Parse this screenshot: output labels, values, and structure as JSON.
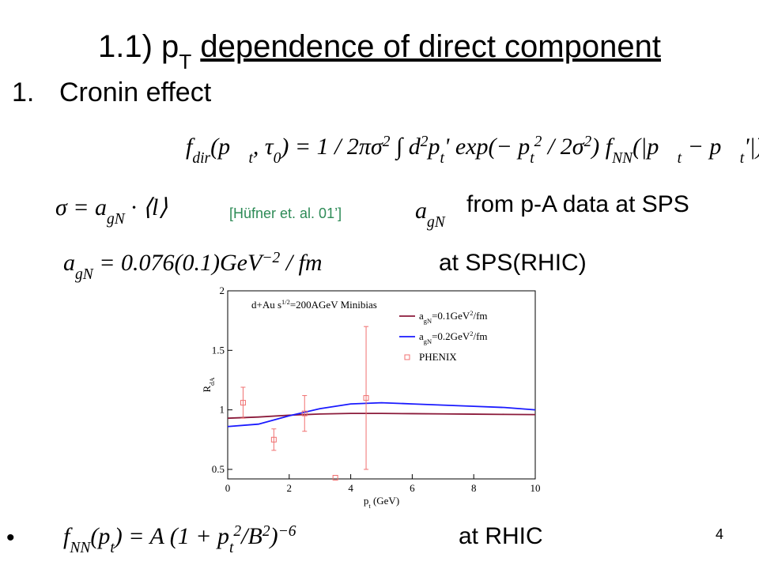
{
  "title": [
    {
      "t": "1.1) p"
    },
    {
      "t": "T",
      "p": "sub"
    },
    {
      "t": " "
    },
    {
      "t": "dependence of direct component",
      "u": true
    }
  ],
  "item": {
    "number": "1.",
    "text": "Cronin effect"
  },
  "eq1": [
    {
      "t": "f"
    },
    {
      "t": "dir",
      "p": "sub"
    },
    {
      "t": "(p⃗"
    },
    {
      "t": "t",
      "p": "sub"
    },
    {
      "t": ", τ"
    },
    {
      "t": "0",
      "p": "sub"
    },
    {
      "t": ") = 1 / 2πσ"
    },
    {
      "t": "2",
      "p": "sup"
    },
    {
      "t": " ∫ d"
    },
    {
      "t": "2",
      "p": "sup"
    },
    {
      "t": "p"
    },
    {
      "t": "t",
      "p": "sub"
    },
    {
      "t": "' exp(− p"
    },
    {
      "t": "t",
      "p": "sub"
    },
    {
      "t": "2",
      "p": "sup"
    },
    {
      "t": " / 2σ"
    },
    {
      "t": "2",
      "p": "sup"
    },
    {
      "t": ") f"
    },
    {
      "t": "NN",
      "p": "sub"
    },
    {
      "t": "(|p⃗"
    },
    {
      "t": "t",
      "p": "sub"
    },
    {
      "t": " − p⃗"
    },
    {
      "t": "t",
      "p": "sub"
    },
    {
      "t": "'|)"
    }
  ],
  "eq2": [
    {
      "t": "σ = a"
    },
    {
      "t": "gN",
      "p": "sub"
    },
    {
      "t": " · ⟨l⟩"
    }
  ],
  "reference": "[Hüfner et. al. 01’]",
  "eq2b": [
    {
      "t": "a"
    },
    {
      "t": "gN",
      "p": "sub"
    }
  ],
  "eq2_note": "from p-A data at SPS",
  "eq3": [
    {
      "t": "a"
    },
    {
      "t": "gN",
      "p": "sub"
    },
    {
      "t": " = 0.076(0.1)GeV"
    },
    {
      "t": "−2",
      "p": "sup"
    },
    {
      "t": " / fm"
    }
  ],
  "eq3_note": "at SPS(RHIC)",
  "bullet": "•",
  "eq4": [
    {
      "t": "f"
    },
    {
      "t": "NN",
      "p": "sub"
    },
    {
      "t": "(p"
    },
    {
      "t": "t",
      "p": "sub"
    },
    {
      "t": ") = A (1 + p"
    },
    {
      "t": "t",
      "p": "sub"
    },
    {
      "t": "2",
      "p": "sup"
    },
    {
      "t": "/B"
    },
    {
      "t": "2",
      "p": "sup"
    },
    {
      "t": ")"
    },
    {
      "t": "−6",
      "p": "sup"
    }
  ],
  "eq4_note": "at RHIC",
  "page_number": "4",
  "chart_data": {
    "type": "line",
    "annotation": [
      {
        "t": "d+Au s"
      },
      {
        "t": "1/2",
        "p": "sup"
      },
      {
        "t": "=200AGeV Minibias"
      }
    ],
    "x_label": [
      {
        "t": "p"
      },
      {
        "t": "t",
        "p": "sub"
      },
      {
        "t": " (GeV)"
      }
    ],
    "y_label": [
      {
        "t": "R"
      },
      {
        "t": "dA",
        "p": "sub"
      }
    ],
    "xlim": [
      0,
      10
    ],
    "ylim": [
      0.42,
      2
    ],
    "xticks": [
      0,
      2,
      4,
      6,
      8,
      10
    ],
    "yticks": [
      0.5,
      1,
      1.5,
      2
    ],
    "x": [
      0,
      1,
      2,
      3,
      4,
      5,
      6,
      7,
      8,
      9,
      10
    ],
    "series": [
      {
        "name": [
          {
            "t": "a"
          },
          {
            "t": "gN",
            "p": "sub"
          },
          {
            "t": "=0.1GeV"
          },
          {
            "t": "2",
            "p": "sup"
          },
          {
            "t": "/fm"
          }
        ],
        "color": "#8b1a3a",
        "values": [
          0.93,
          0.94,
          0.955,
          0.965,
          0.97,
          0.97,
          0.968,
          0.966,
          0.964,
          0.962,
          0.96
        ]
      },
      {
        "name": [
          {
            "t": "a"
          },
          {
            "t": "gN",
            "p": "sub"
          },
          {
            "t": "=0.2GeV"
          },
          {
            "t": "2",
            "p": "sup"
          },
          {
            "t": "/fm"
          }
        ],
        "color": "#1a1aff",
        "values": [
          0.86,
          0.88,
          0.95,
          1.01,
          1.05,
          1.06,
          1.05,
          1.04,
          1.03,
          1.02,
          1.0
        ]
      }
    ],
    "points": {
      "name": [
        {
          "t": "PHENIX"
        }
      ],
      "color": "#f07070",
      "x": [
        0.5,
        1.5,
        2.5,
        3.5,
        4.5
      ],
      "values": [
        1.06,
        0.75,
        0.97,
        0.43,
        1.1
      ],
      "errors": [
        0.13,
        0.09,
        0.15,
        0,
        0.6
      ]
    }
  }
}
